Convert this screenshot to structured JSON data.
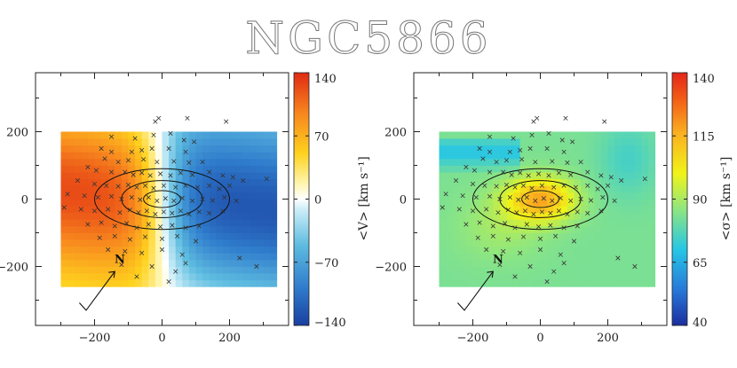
{
  "title": "NGC5866",
  "chart_data": [
    {
      "type": "heatmap",
      "quantity": "velocity",
      "x_ticks": [
        -200,
        0,
        200
      ],
      "y_ticks": [
        -200,
        0,
        200
      ],
      "xlim": [
        -375,
        375
      ],
      "ylim": [
        -375,
        375
      ],
      "map_extent": {
        "x": [
          -300,
          340
        ],
        "y": [
          -260,
          200
        ]
      },
      "colorbar": {
        "label": "<V> [km s⁻¹]",
        "min": -140,
        "max": 140,
        "ticks": [
          140,
          70,
          0,
          -70,
          -140
        ],
        "colormap": "diverging blue-white-red"
      },
      "compass_label": "N",
      "contours": [
        {
          "a": 55,
          "b": 25
        },
        {
          "a": 120,
          "b": 55
        },
        {
          "a": 200,
          "b": 90
        }
      ],
      "stars": [
        [
          -10,
          240
        ],
        [
          -20,
          230
        ],
        [
          75,
          240
        ],
        [
          190,
          230
        ],
        [
          -150,
          185
        ],
        [
          -80,
          180
        ],
        [
          -25,
          190
        ],
        [
          25,
          195
        ],
        [
          65,
          175
        ],
        [
          95,
          170
        ],
        [
          -180,
          150
        ],
        [
          -150,
          140
        ],
        [
          -90,
          140
        ],
        [
          -60,
          145
        ],
        [
          -30,
          150
        ],
        [
          20,
          150
        ],
        [
          70,
          140
        ],
        [
          -170,
          120
        ],
        [
          -130,
          110
        ],
        [
          -100,
          115
        ],
        [
          -55,
          118
        ],
        [
          -15,
          110
        ],
        [
          35,
          112
        ],
        [
          80,
          108
        ],
        [
          120,
          110
        ],
        [
          -220,
          95
        ],
        [
          -195,
          85
        ],
        [
          -150,
          80
        ],
        [
          -110,
          80
        ],
        [
          -85,
          72
        ],
        [
          -60,
          78
        ],
        [
          -35,
          70
        ],
        [
          -5,
          75
        ],
        [
          25,
          70
        ],
        [
          55,
          78
        ],
        [
          90,
          72
        ],
        [
          140,
          80
        ],
        [
          180,
          70
        ],
        [
          210,
          65
        ],
        [
          -250,
          55
        ],
        [
          -200,
          45
        ],
        [
          -165,
          40
        ],
        [
          -130,
          38
        ],
        [
          -100,
          42
        ],
        [
          -75,
          35
        ],
        [
          -50,
          40
        ],
        [
          -25,
          32
        ],
        [
          5,
          40
        ],
        [
          40,
          35
        ],
        [
          70,
          40
        ],
        [
          105,
          35
        ],
        [
          140,
          40
        ],
        [
          170,
          30
        ],
        [
          200,
          40
        ],
        [
          240,
          55
        ],
        [
          310,
          60
        ],
        [
          -280,
          15
        ],
        [
          -230,
          10
        ],
        [
          -190,
          5
        ],
        [
          -150,
          8
        ],
        [
          -120,
          0
        ],
        [
          -90,
          5
        ],
        [
          -65,
          -2
        ],
        [
          -40,
          5
        ],
        [
          -15,
          -5
        ],
        [
          10,
          2
        ],
        [
          35,
          -5
        ],
        [
          60,
          3
        ],
        [
          90,
          -5
        ],
        [
          120,
          0
        ],
        [
          150,
          -4
        ],
        [
          185,
          5
        ],
        [
          220,
          -5
        ],
        [
          -290,
          -25
        ],
        [
          -240,
          -30
        ],
        [
          -200,
          -35
        ],
        [
          -160,
          -30
        ],
        [
          -125,
          -40
        ],
        [
          -95,
          -32
        ],
        [
          -70,
          -40
        ],
        [
          -45,
          -35
        ],
        [
          -20,
          -45
        ],
        [
          5,
          -38
        ],
        [
          30,
          -42
        ],
        [
          55,
          -35
        ],
        [
          80,
          -45
        ],
        [
          110,
          -38
        ],
        [
          140,
          -42
        ],
        [
          180,
          -35
        ],
        [
          -220,
          -75
        ],
        [
          -180,
          -70
        ],
        [
          -140,
          -80
        ],
        [
          -105,
          -72
        ],
        [
          -75,
          -85
        ],
        [
          -40,
          -75
        ],
        [
          -5,
          -82
        ],
        [
          30,
          -78
        ],
        [
          70,
          -85
        ],
        [
          110,
          -80
        ],
        [
          -185,
          -115
        ],
        [
          -140,
          -110
        ],
        [
          -95,
          -120
        ],
        [
          -50,
          -112
        ],
        [
          0,
          -118
        ],
        [
          45,
          -110
        ],
        [
          100,
          -125
        ],
        [
          -160,
          -150
        ],
        [
          -110,
          -155
        ],
        [
          -60,
          -160
        ],
        [
          0,
          -150
        ],
        [
          60,
          -165
        ],
        [
          -120,
          -195
        ],
        [
          -30,
          -200
        ],
        [
          40,
          -215
        ],
        [
          -75,
          -230
        ],
        [
          20,
          -245
        ],
        [
          70,
          -190
        ],
        [
          230,
          -175
        ],
        [
          280,
          -200
        ]
      ]
    },
    {
      "type": "heatmap",
      "quantity": "dispersion",
      "x_ticks": [
        -200,
        0,
        200
      ],
      "y_ticks": [
        -200,
        0,
        200
      ],
      "xlim": [
        -375,
        375
      ],
      "ylim": [
        -375,
        375
      ],
      "map_extent": {
        "x": [
          -300,
          340
        ],
        "y": [
          -260,
          200
        ]
      },
      "colorbar": {
        "label": "<σ> [km s⁻¹]",
        "min": 40,
        "max": 140,
        "ticks": [
          140,
          115,
          90,
          65,
          40
        ],
        "colormap": "jet"
      },
      "compass_label": "N",
      "contours": [
        {
          "a": 55,
          "b": 25
        },
        {
          "a": 120,
          "b": 55
        },
        {
          "a": 200,
          "b": 90
        }
      ]
    }
  ]
}
